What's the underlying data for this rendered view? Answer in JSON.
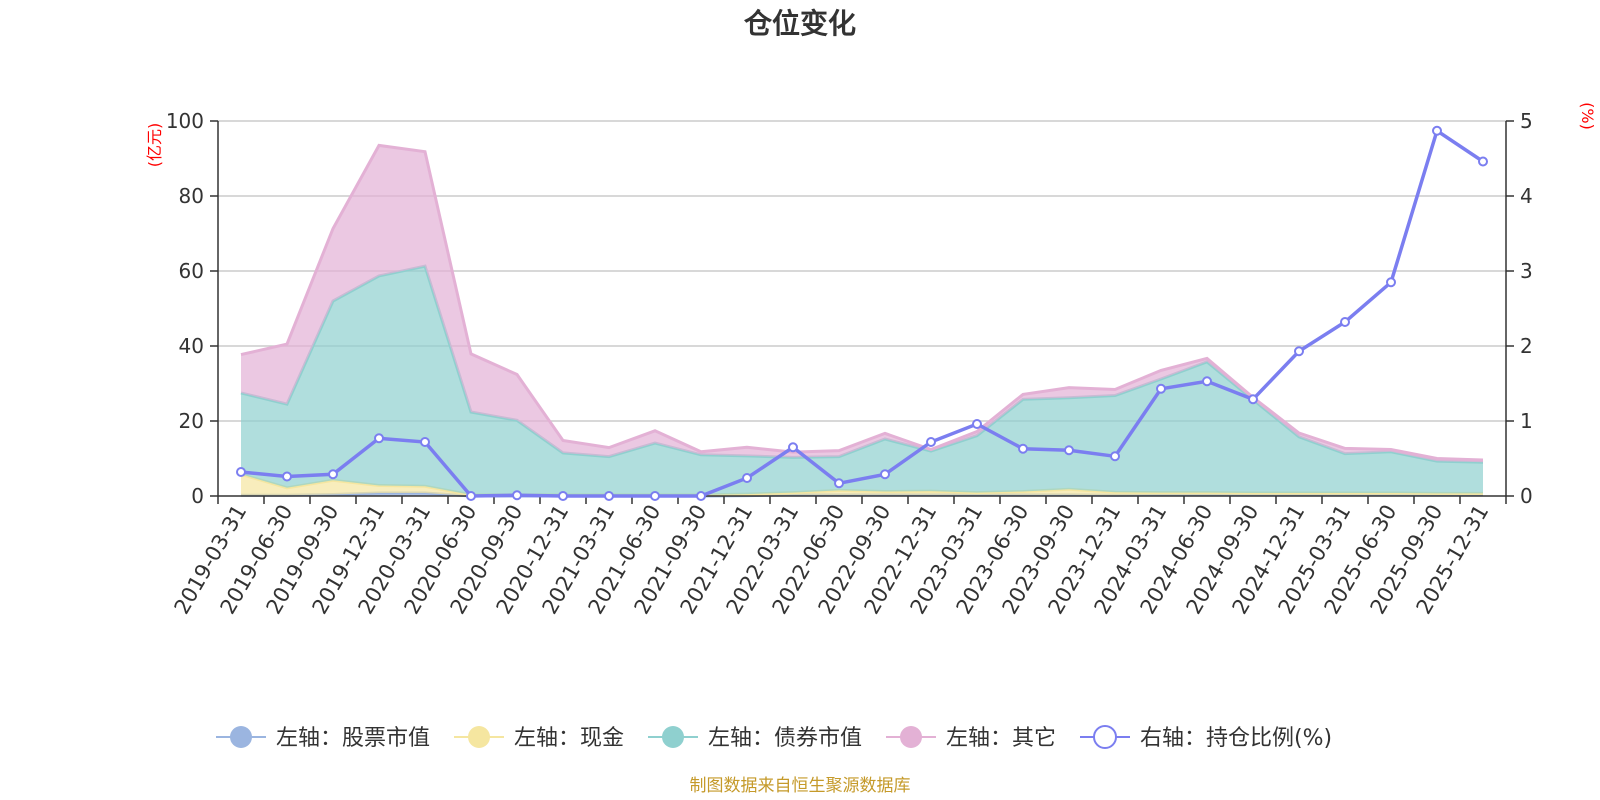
{
  "chart_data": {
    "type": "area",
    "title": "仓位变化",
    "left_axis_unit": "(亿元)",
    "right_axis_unit": "(%)",
    "ylim_left": [
      0,
      100
    ],
    "yticks_left": [
      "0",
      "20",
      "40",
      "60",
      "80",
      "100"
    ],
    "ylim_right": [
      0,
      5
    ],
    "yticks_right": [
      "0",
      "1",
      "2",
      "3",
      "4",
      "5"
    ],
    "grid": true,
    "legend_position": "bottom",
    "categories": [
      "2019-03-31",
      "2019-06-30",
      "2019-09-30",
      "2019-12-31",
      "2020-03-31",
      "2020-06-30",
      "2020-09-30",
      "2020-12-31",
      "2021-03-31",
      "2021-06-30",
      "2021-09-30",
      "2021-12-31",
      "2022-03-31",
      "2022-06-30",
      "2022-09-30",
      "2022-12-31",
      "2023-03-31",
      "2023-06-30",
      "2023-09-30",
      "2023-12-31",
      "2024-03-31",
      "2024-06-30",
      "2024-09-30",
      "2024-12-31",
      "2025-03-31",
      "2025-06-30",
      "2025-09-30",
      "2025-12-31"
    ],
    "series": [
      {
        "name": "左轴：股票市值",
        "axis": "left",
        "kind": "area",
        "color": "#9bb5e0",
        "values": [
          0.2,
          0.2,
          0.4,
          0.8,
          0.8,
          0.0,
          0.0,
          0.0,
          0.0,
          0.0,
          0.0,
          0.1,
          0.3,
          0.3,
          0.3,
          0.3,
          0.3,
          0.3,
          0.3,
          0.2,
          0.3,
          0.3,
          0.3,
          0.3,
          0.3,
          0.3,
          0.3,
          0.3
        ]
      },
      {
        "name": "左轴：现金",
        "axis": "left",
        "kind": "area",
        "color": "#f5e6a0",
        "values": [
          5.6,
          2.0,
          3.8,
          2.0,
          1.8,
          0.3,
          0.3,
          0.3,
          0.3,
          0.3,
          0.3,
          0.4,
          0.6,
          1.2,
          0.9,
          1.0,
          0.6,
          0.9,
          1.5,
          0.8,
          0.6,
          0.6,
          0.5,
          0.5,
          0.5,
          0.5,
          0.4,
          0.4
        ]
      },
      {
        "name": "左轴：债券市值",
        "axis": "left",
        "kind": "area",
        "color": "#8fd0cf",
        "values": [
          21.7,
          22.3,
          47.8,
          55.9,
          58.7,
          22.1,
          19.9,
          11.2,
          10.2,
          13.8,
          10.7,
          10.2,
          9.4,
          9.0,
          14.0,
          10.7,
          15.2,
          24.6,
          24.4,
          25.8,
          30.3,
          34.9,
          24.9,
          15.0,
          10.5,
          11.0,
          8.6,
          8.3
        ]
      },
      {
        "name": "左轴：其它",
        "axis": "left",
        "kind": "area",
        "color": "#e3b1d5",
        "values": [
          10.2,
          16.0,
          19.3,
          34.8,
          30.5,
          15.5,
          12.2,
          3.3,
          2.4,
          3.3,
          0.8,
          2.3,
          1.4,
          1.6,
          1.5,
          0.4,
          1.1,
          1.3,
          2.7,
          1.6,
          2.3,
          0.9,
          0.6,
          1.0,
          1.4,
          0.6,
          0.7,
          0.6
        ]
      },
      {
        "name": "右轴：持仓比例(%)",
        "axis": "right",
        "kind": "line",
        "color": "#7b7ef0",
        "values": [
          0.32,
          0.26,
          0.29,
          0.77,
          0.72,
          0.0,
          0.01,
          0.0,
          0.0,
          0.0,
          0.0,
          0.24,
          0.65,
          0.17,
          0.29,
          0.72,
          0.96,
          0.63,
          0.61,
          0.53,
          1.43,
          1.53,
          1.29,
          1.93,
          2.32,
          2.85,
          4.87,
          4.46
        ]
      }
    ]
  },
  "legend": [
    {
      "label": "左轴：股票市值",
      "color": "#9bb5e0",
      "marker": "filled-circle"
    },
    {
      "label": "左轴：现金",
      "color": "#f5e6a0",
      "marker": "filled-circle"
    },
    {
      "label": "左轴：债券市值",
      "color": "#8fd0cf",
      "marker": "filled-circle"
    },
    {
      "label": "左轴：其它",
      "color": "#e3b1d5",
      "marker": "filled-circle"
    },
    {
      "label": "右轴：持仓比例(%)",
      "color": "#7b7ef0",
      "marker": "hollow-circle"
    }
  ],
  "source_text": "制图数据来自恒生聚源数据库"
}
